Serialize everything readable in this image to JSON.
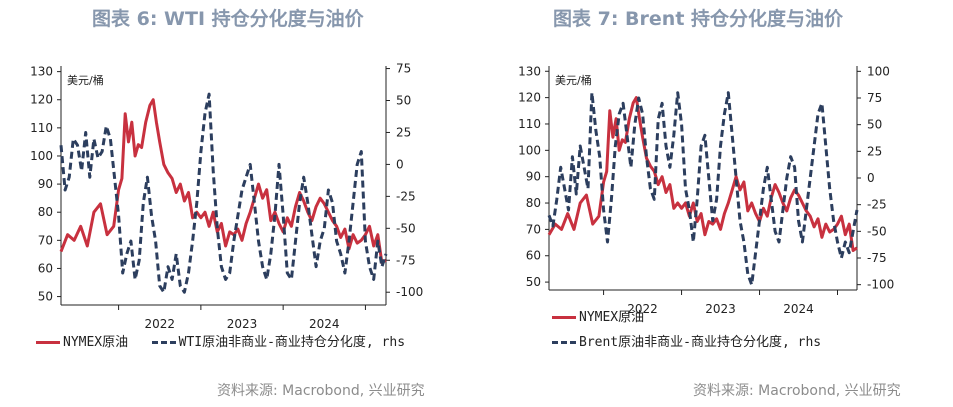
{
  "figure1": {
    "title": "图表 6:  WTI 持仓分化度与油价",
    "unit_label": "美元/桶",
    "legend_solid": "NYMEX原油",
    "legend_dash": "WTI原油非商业-商业持仓分化度, rhs",
    "source": "资料来源: Macrobond, 兴业研究"
  },
  "figure2": {
    "title": "图表 7:  Brent 持仓分化度与油价",
    "unit_label": "美元/桶",
    "legend_solid": "NYMEX原油",
    "legend_dash": "Brent原油非商业-商业持仓分化度, rhs",
    "source": "资料来源: Macrobond, 兴业研究"
  },
  "chart_data": [
    {
      "type": "line",
      "title": "图表 6:  WTI 持仓分化度与油价",
      "ylabel": "美元/桶",
      "x_range": [
        2021.3,
        2025.25
      ],
      "x_ticks": [
        "2022",
        "2023",
        "2024"
      ],
      "ylim": [
        47,
        132
      ],
      "y_ticks": [
        50,
        60,
        70,
        80,
        90,
        100,
        110,
        120,
        130
      ],
      "y2lim": [
        -110,
        77
      ],
      "y2_ticks": [
        -100,
        -75,
        -50,
        -25,
        0,
        25,
        50,
        75
      ],
      "legend_position": "bottom",
      "grid": false,
      "series": [
        {
          "name": "NYMEX原油",
          "axis": "left",
          "color": "#c8313f",
          "style": "solid",
          "x": [
            2021.3,
            2021.38,
            2021.46,
            2021.54,
            2021.62,
            2021.7,
            2021.78,
            2021.86,
            2021.94,
            2022.0,
            2022.04,
            2022.08,
            2022.12,
            2022.16,
            2022.2,
            2022.24,
            2022.28,
            2022.33,
            2022.38,
            2022.42,
            2022.46,
            2022.5,
            2022.55,
            2022.6,
            2022.65,
            2022.7,
            2022.75,
            2022.8,
            2022.85,
            2022.9,
            2022.95,
            2023.0,
            2023.05,
            2023.1,
            2023.15,
            2023.2,
            2023.25,
            2023.3,
            2023.35,
            2023.4,
            2023.45,
            2023.5,
            2023.55,
            2023.6,
            2023.65,
            2023.7,
            2023.75,
            2023.8,
            2023.85,
            2023.9,
            2023.95,
            2024.0,
            2024.05,
            2024.1,
            2024.15,
            2024.2,
            2024.25,
            2024.3,
            2024.35,
            2024.4,
            2024.45,
            2024.5,
            2024.55,
            2024.6,
            2024.65,
            2024.7,
            2024.75,
            2024.8,
            2024.85,
            2024.9,
            2024.95,
            2025.0,
            2025.05,
            2025.1,
            2025.15,
            2025.2,
            2025.25
          ],
          "values": [
            66,
            72,
            70,
            75,
            68,
            80,
            83,
            72,
            75,
            88,
            92,
            115,
            105,
            112,
            100,
            104,
            103,
            112,
            118,
            120,
            112,
            105,
            97,
            94,
            92,
            87,
            90,
            84,
            87,
            78,
            80,
            78,
            80,
            75,
            80,
            73,
            76,
            68,
            73,
            72,
            74,
            70,
            76,
            80,
            85,
            90,
            85,
            88,
            77,
            80,
            76,
            73,
            78,
            75,
            82,
            87,
            84,
            80,
            77,
            82,
            85,
            83,
            80,
            77,
            75,
            71,
            74,
            67,
            72,
            69,
            70,
            72,
            75,
            68,
            72,
            62,
            63
          ]
        },
        {
          "name": "WTI原油非商业-商业持仓分化度, rhs",
          "axis": "right",
          "color": "#2c3e5e",
          "style": "dashed",
          "x": [
            2021.3,
            2021.35,
            2021.4,
            2021.45,
            2021.5,
            2021.55,
            2021.6,
            2021.65,
            2021.7,
            2021.75,
            2021.8,
            2021.85,
            2021.9,
            2021.95,
            2022.0,
            2022.05,
            2022.1,
            2022.15,
            2022.2,
            2022.25,
            2022.3,
            2022.35,
            2022.4,
            2022.45,
            2022.5,
            2022.55,
            2022.6,
            2022.65,
            2022.7,
            2022.75,
            2022.8,
            2022.85,
            2022.9,
            2022.95,
            2023.0,
            2023.05,
            2023.1,
            2023.15,
            2023.2,
            2023.25,
            2023.3,
            2023.35,
            2023.4,
            2023.45,
            2023.5,
            2023.55,
            2023.6,
            2023.65,
            2023.7,
            2023.75,
            2023.8,
            2023.85,
            2023.9,
            2023.95,
            2024.0,
            2024.05,
            2024.1,
            2024.15,
            2024.2,
            2024.25,
            2024.3,
            2024.35,
            2024.4,
            2024.45,
            2024.5,
            2024.55,
            2024.6,
            2024.65,
            2024.7,
            2024.75,
            2024.8,
            2024.85,
            2024.9,
            2024.95,
            2025.0,
            2025.05,
            2025.1,
            2025.15,
            2025.2,
            2025.25
          ],
          "values": [
            15,
            -20,
            -10,
            20,
            15,
            -5,
            25,
            -10,
            20,
            5,
            10,
            30,
            20,
            -10,
            -40,
            -85,
            -70,
            -60,
            -90,
            -75,
            -30,
            -10,
            -40,
            -60,
            -95,
            -100,
            -80,
            -90,
            -70,
            -95,
            -100,
            -85,
            -60,
            -30,
            10,
            40,
            55,
            -5,
            -50,
            -80,
            -90,
            -85,
            -60,
            -40,
            -20,
            -10,
            0,
            -30,
            -60,
            -80,
            -90,
            -70,
            -40,
            0,
            -40,
            -85,
            -90,
            -60,
            -30,
            -10,
            -30,
            -55,
            -80,
            -60,
            -50,
            -20,
            -30,
            -60,
            -70,
            -85,
            -60,
            -30,
            0,
            10,
            -60,
            -80,
            -90,
            -60,
            -80,
            -70
          ]
        }
      ]
    },
    {
      "type": "line",
      "title": "图表 7:  Brent 持仓分化度与油价",
      "ylabel": "美元/桶",
      "x_range": [
        2021.3,
        2025.25
      ],
      "x_ticks": [
        "2022",
        "2023",
        "2024"
      ],
      "ylim": [
        47,
        132
      ],
      "y_ticks": [
        50,
        60,
        70,
        80,
        90,
        100,
        110,
        120,
        130
      ],
      "y2lim": [
        -105,
        105
      ],
      "y2_ticks": [
        -100,
        -75,
        -50,
        -25,
        0,
        25,
        50,
        75,
        100
      ],
      "legend_position": "bottom",
      "grid": false,
      "series": [
        {
          "name": "NYMEX原油",
          "axis": "left",
          "color": "#c8313f",
          "style": "solid",
          "x": [
            2021.3,
            2021.38,
            2021.46,
            2021.54,
            2021.62,
            2021.7,
            2021.78,
            2021.86,
            2021.94,
            2022.0,
            2022.04,
            2022.08,
            2022.12,
            2022.16,
            2022.2,
            2022.24,
            2022.28,
            2022.33,
            2022.38,
            2022.42,
            2022.46,
            2022.5,
            2022.55,
            2022.6,
            2022.65,
            2022.7,
            2022.75,
            2022.8,
            2022.85,
            2022.9,
            2022.95,
            2023.0,
            2023.05,
            2023.1,
            2023.15,
            2023.2,
            2023.25,
            2023.3,
            2023.35,
            2023.4,
            2023.45,
            2023.5,
            2023.55,
            2023.6,
            2023.65,
            2023.7,
            2023.75,
            2023.8,
            2023.85,
            2023.9,
            2023.95,
            2024.0,
            2024.05,
            2024.1,
            2024.15,
            2024.2,
            2024.25,
            2024.3,
            2024.35,
            2024.4,
            2024.45,
            2024.5,
            2024.55,
            2024.6,
            2024.65,
            2024.7,
            2024.75,
            2024.8,
            2024.85,
            2024.9,
            2024.95,
            2025.0,
            2025.05,
            2025.1,
            2025.15,
            2025.2,
            2025.25
          ],
          "values": [
            68,
            72,
            70,
            76,
            70,
            80,
            83,
            72,
            75,
            88,
            92,
            115,
            105,
            112,
            100,
            104,
            103,
            112,
            118,
            120,
            112,
            105,
            97,
            94,
            92,
            87,
            90,
            84,
            87,
            78,
            80,
            78,
            80,
            75,
            80,
            73,
            76,
            68,
            73,
            72,
            74,
            70,
            76,
            80,
            85,
            90,
            85,
            88,
            77,
            80,
            76,
            73,
            78,
            75,
            82,
            87,
            84,
            80,
            77,
            82,
            85,
            83,
            80,
            77,
            75,
            71,
            74,
            67,
            72,
            69,
            70,
            72,
            75,
            68,
            72,
            62,
            63
          ]
        },
        {
          "name": "Brent原油非商业-商业持仓分化度, rhs",
          "axis": "right",
          "color": "#2c3e5e",
          "style": "dashed",
          "x": [
            2021.3,
            2021.35,
            2021.4,
            2021.45,
            2021.5,
            2021.55,
            2021.6,
            2021.65,
            2021.7,
            2021.75,
            2021.8,
            2021.85,
            2021.9,
            2021.95,
            2022.0,
            2022.05,
            2022.1,
            2022.15,
            2022.2,
            2022.25,
            2022.3,
            2022.35,
            2022.4,
            2022.45,
            2022.5,
            2022.55,
            2022.6,
            2022.65,
            2022.7,
            2022.75,
            2022.8,
            2022.85,
            2022.9,
            2022.95,
            2023.0,
            2023.05,
            2023.1,
            2023.15,
            2023.2,
            2023.25,
            2023.3,
            2023.35,
            2023.4,
            2023.45,
            2023.5,
            2023.55,
            2023.6,
            2023.65,
            2023.7,
            2023.75,
            2023.8,
            2023.85,
            2023.9,
            2023.95,
            2024.0,
            2024.05,
            2024.1,
            2024.15,
            2024.2,
            2024.25,
            2024.3,
            2024.35,
            2024.4,
            2024.45,
            2024.5,
            2024.55,
            2024.6,
            2024.65,
            2024.7,
            2024.75,
            2024.8,
            2024.85,
            2024.9,
            2024.95,
            2025.0,
            2025.05,
            2025.1,
            2025.15,
            2025.2,
            2025.25
          ],
          "values": [
            -35,
            -45,
            -20,
            10,
            -10,
            -30,
            20,
            -15,
            30,
            10,
            -10,
            80,
            45,
            20,
            -30,
            -60,
            -20,
            30,
            60,
            70,
            40,
            10,
            50,
            75,
            60,
            20,
            -10,
            -20,
            55,
            70,
            30,
            10,
            40,
            80,
            50,
            -10,
            -30,
            -60,
            -20,
            30,
            40,
            0,
            -40,
            -20,
            30,
            60,
            80,
            40,
            0,
            -40,
            -60,
            -90,
            -100,
            -70,
            -40,
            -10,
            10,
            -20,
            -50,
            -60,
            -30,
            0,
            20,
            10,
            -40,
            -60,
            -30,
            0,
            30,
            60,
            70,
            30,
            -10,
            -40,
            -60,
            -75,
            -60,
            -70,
            -50,
            -30
          ]
        }
      ]
    }
  ]
}
